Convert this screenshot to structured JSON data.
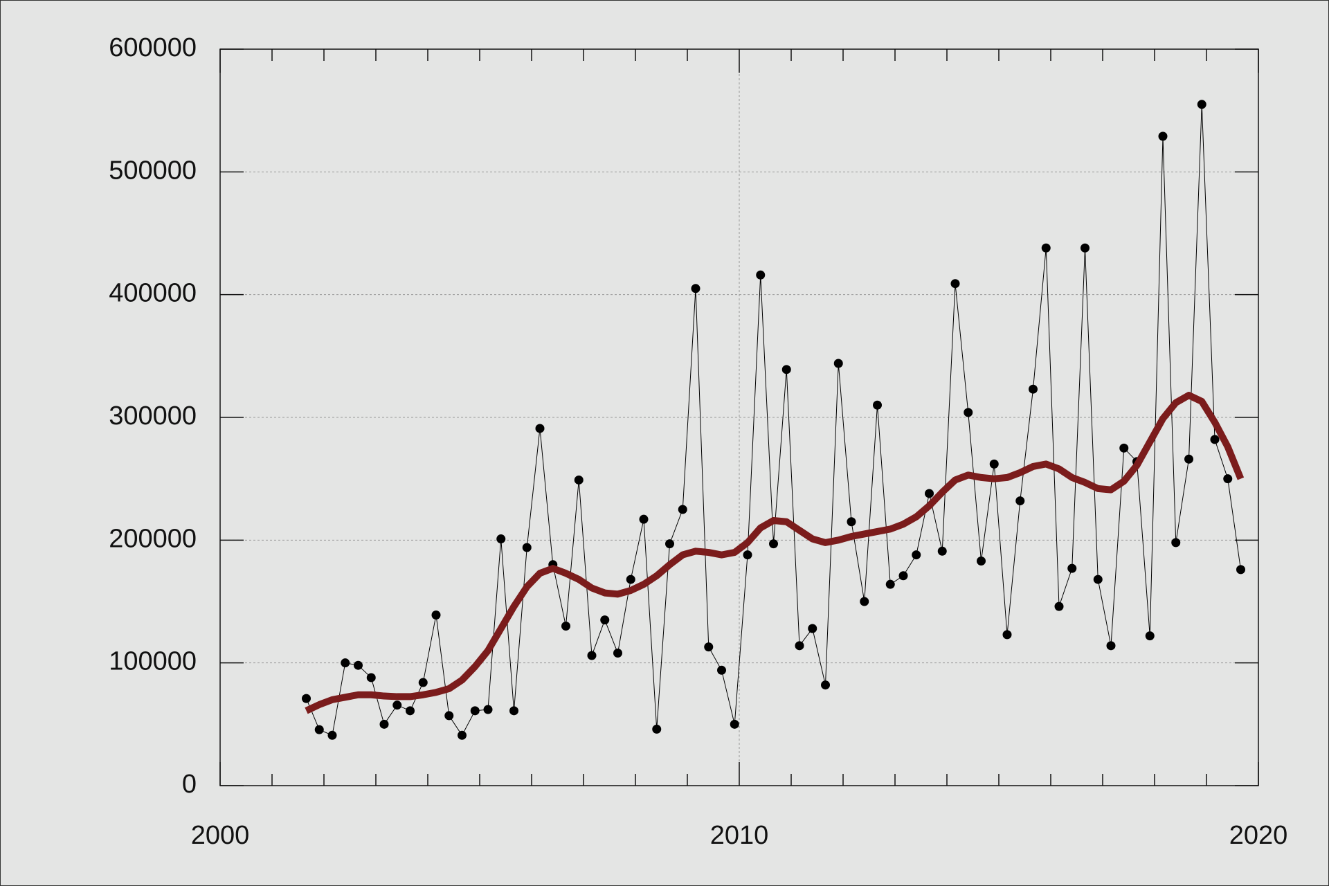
{
  "chart_data": {
    "type": "line",
    "x": [
      2001.66,
      2001.91,
      2002.16,
      2002.41,
      2002.66,
      2002.91,
      2003.16,
      2003.41,
      2003.66,
      2003.91,
      2004.16,
      2004.41,
      2004.66,
      2004.91,
      2005.16,
      2005.41,
      2005.66,
      2005.91,
      2006.16,
      2006.41,
      2006.66,
      2006.91,
      2007.16,
      2007.41,
      2007.66,
      2007.91,
      2008.16,
      2008.41,
      2008.66,
      2008.91,
      2009.16,
      2009.41,
      2009.66,
      2009.91,
      2010.16,
      2010.41,
      2010.66,
      2010.91,
      2011.16,
      2011.41,
      2011.66,
      2011.91,
      2012.16,
      2012.41,
      2012.66,
      2012.91,
      2013.16,
      2013.41,
      2013.66,
      2013.91,
      2014.16,
      2014.41,
      2014.66,
      2014.91,
      2015.16,
      2015.41,
      2015.66,
      2015.91,
      2016.16,
      2016.41,
      2016.66,
      2016.91,
      2017.16,
      2017.41,
      2017.66,
      2017.91,
      2018.16,
      2018.41,
      2018.66,
      2018.91,
      2019.16,
      2019.41,
      2019.66
    ],
    "series": [
      {
        "color": "#000000",
        "markers": true,
        "line_width": 1,
        "values": [
          71000,
          45600,
          41000,
          100000,
          98000,
          88000,
          50000,
          65600,
          61000,
          84000,
          139000,
          57000,
          41000,
          61000,
          62000,
          201000,
          61000,
          194000,
          291000,
          180000,
          130000,
          249000,
          106000,
          135000,
          108000,
          168000,
          217000,
          46000,
          197000,
          225000,
          405000,
          113000,
          94000,
          50000,
          188000,
          416000,
          197000,
          339000,
          114000,
          128000,
          82000,
          344000,
          215000,
          150000,
          310000,
          164000,
          171000,
          188000,
          238000,
          191000,
          409000,
          304000,
          183000,
          262000,
          123000,
          232000,
          323000,
          438000,
          146000,
          177000,
          438000,
          168000,
          114000,
          275000,
          264000,
          122000,
          529000,
          198000,
          266000,
          555000,
          282000,
          250000,
          176000
        ]
      },
      {
        "color": "#7b1c1c",
        "markers": false,
        "line_width": 10,
        "values": [
          61000,
          66000,
          70000,
          72000,
          74000,
          74000,
          73000,
          72500,
          72500,
          74000,
          76000,
          79000,
          86000,
          97000,
          110000,
          128000,
          146000,
          162000,
          173000,
          177000,
          173000,
          168000,
          161000,
          157000,
          156000,
          159000,
          164000,
          171000,
          180000,
          188000,
          191000,
          190000,
          188000,
          190000,
          198000,
          210000,
          216000,
          215000,
          208000,
          201000,
          198000,
          200000,
          203000,
          205000,
          207000,
          209000,
          213000,
          219000,
          228000,
          239000,
          249000,
          253000,
          251000,
          250000,
          251000,
          255000,
          260000,
          262000,
          258000,
          251000,
          247000,
          242000,
          241000,
          248000,
          261000,
          280000,
          299000,
          312000,
          318000,
          313000,
          296000,
          276000,
          250000
        ]
      }
    ],
    "xlim": [
      2000,
      2020
    ],
    "xticks": [
      2000,
      2010,
      2020
    ],
    "xminorticks": [
      2001,
      2002,
      2003,
      2004,
      2005,
      2006,
      2007,
      2008,
      2009,
      2011,
      2012,
      2013,
      2014,
      2015,
      2016,
      2017,
      2018,
      2019
    ],
    "ylim": [
      0,
      600000
    ],
    "yticks": [
      0,
      100000,
      200000,
      300000,
      400000,
      500000,
      600000
    ],
    "grid": true
  }
}
